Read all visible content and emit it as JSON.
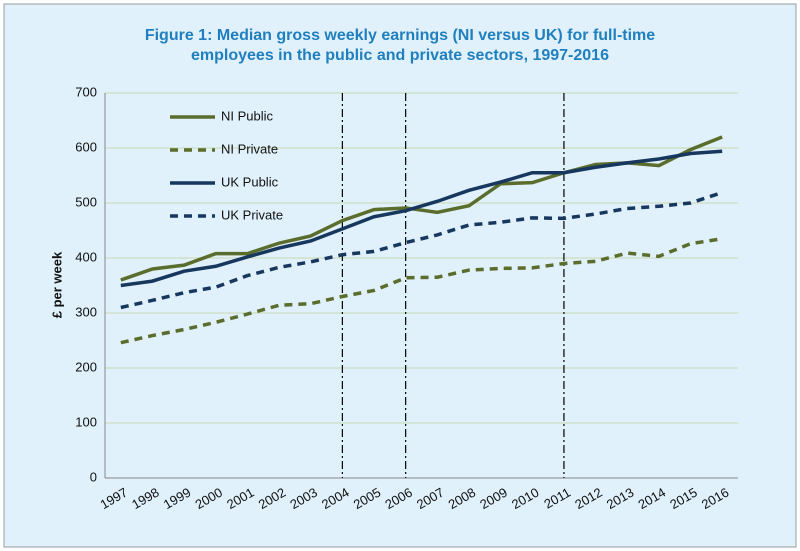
{
  "chart_data": {
    "type": "line",
    "title": [
      "Figure 1: Median gross weekly earnings (NI versus UK) for full-time",
      "employees in the public and private sectors, 1997-2016"
    ],
    "y_label": "£ per week",
    "categories": [
      "1997",
      "1998",
      "1999",
      "2000",
      "2001",
      "2002",
      "2003",
      "2004",
      "2005",
      "2006",
      "2007",
      "2008",
      "2009",
      "2010",
      "2011",
      "2012",
      "2013",
      "2014",
      "2015",
      "2016"
    ],
    "series": [
      {
        "name": "NI Public",
        "color": "#5b6d2c",
        "dashed": false,
        "values": [
          360,
          380,
          387,
          408,
          408,
          427,
          440,
          468,
          488,
          491,
          483,
          495,
          535,
          537,
          555,
          570,
          573,
          568,
          597,
          620
        ]
      },
      {
        "name": "NI Private",
        "color": "#5b6d2c",
        "dashed": true,
        "values": [
          246,
          259,
          270,
          283,
          298,
          314,
          317,
          330,
          341,
          364,
          365,
          378,
          381,
          382,
          390,
          394,
          409,
          403,
          426,
          435
        ]
      },
      {
        "name": "UK Public",
        "color": "#17375e",
        "dashed": false,
        "values": [
          350,
          358,
          376,
          385,
          402,
          418,
          431,
          453,
          475,
          486,
          503,
          523,
          538,
          555,
          555,
          565,
          573,
          580,
          590,
          594
        ]
      },
      {
        "name": "UK Private",
        "color": "#17375e",
        "dashed": true,
        "values": [
          310,
          323,
          337,
          347,
          368,
          383,
          393,
          406,
          412,
          428,
          442,
          460,
          465,
          473,
          472,
          480,
          490,
          494,
          500,
          519
        ]
      }
    ],
    "vertical_lines": [
      "2004",
      "2006",
      "2011"
    ],
    "ylim": [
      0,
      700
    ],
    "yticks": [
      0,
      100,
      200,
      300,
      400,
      500,
      600,
      700
    ],
    "grid": true,
    "legend": "upper-left"
  }
}
